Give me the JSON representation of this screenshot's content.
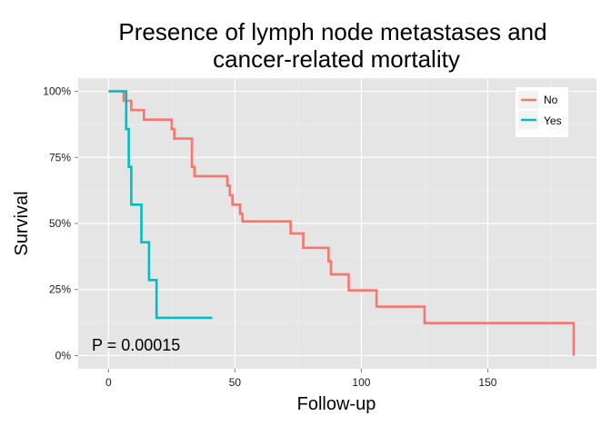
{
  "chart_data": {
    "type": "line",
    "title_lines": [
      "Presence of lymph node metastases and",
      "cancer-related mortality"
    ],
    "xlabel": "Follow-up",
    "ylabel": "Survival",
    "xlim": [
      -12,
      193
    ],
    "ylim": [
      -0.05,
      1.05
    ],
    "x_ticks": [
      0,
      50,
      100,
      150
    ],
    "x_tick_labels": [
      "0",
      "50",
      "100",
      "150"
    ],
    "y_ticks": [
      0,
      0.25,
      0.5,
      0.75,
      1.0
    ],
    "y_tick_labels": [
      "0%",
      "25%",
      "50%",
      "75%",
      "100%"
    ],
    "grid": true,
    "legend_position": "top-right",
    "annotation": "P = 0.00015",
    "series": [
      {
        "name": "No",
        "color": "#f8766d",
        "x": [
          0,
          5,
          6,
          8,
          9,
          13,
          14,
          24,
          25,
          26,
          33,
          34,
          47,
          48,
          49,
          52,
          53,
          71,
          72,
          76,
          77,
          86,
          87,
          88,
          94,
          95,
          105,
          106,
          124,
          125,
          183,
          184
        ],
        "y": [
          1.0,
          1.0,
          0.964,
          0.964,
          0.929,
          0.929,
          0.893,
          0.893,
          0.857,
          0.821,
          0.714,
          0.679,
          0.643,
          0.607,
          0.571,
          0.536,
          0.508,
          0.508,
          0.462,
          0.462,
          0.408,
          0.408,
          0.357,
          0.307,
          0.307,
          0.247,
          0.247,
          0.185,
          0.185,
          0.123,
          0.123,
          0.0
        ]
      },
      {
        "name": "Yes",
        "color": "#00bfc4",
        "x": [
          0,
          4,
          7,
          8,
          9,
          13,
          16,
          19,
          41
        ],
        "y": [
          1.0,
          1.0,
          0.857,
          0.714,
          0.571,
          0.429,
          0.286,
          0.143,
          0.143
        ]
      }
    ]
  }
}
